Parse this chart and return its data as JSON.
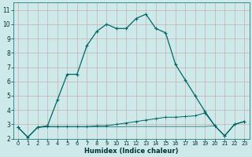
{
  "xlabel": "Humidex (Indice chaleur)",
  "bg_color": "#cde9e9",
  "grid_color": "#c8a0a0",
  "line_color": "#006666",
  "xlim": [
    -0.5,
    23.5
  ],
  "ylim": [
    2,
    11.5
  ],
  "yticks": [
    2,
    3,
    4,
    5,
    6,
    7,
    8,
    9,
    10,
    11
  ],
  "xticks": [
    0,
    1,
    2,
    3,
    4,
    5,
    6,
    7,
    8,
    9,
    10,
    11,
    12,
    13,
    14,
    15,
    16,
    17,
    18,
    19,
    20,
    21,
    22,
    23
  ],
  "line1_x": [
    0,
    1,
    2,
    3,
    4,
    5,
    6,
    7,
    8,
    9,
    10,
    11,
    12,
    13,
    14,
    15,
    16,
    17,
    18,
    19,
    20,
    21,
    22,
    23
  ],
  "line1_y": [
    2.8,
    2.1,
    2.8,
    2.9,
    4.7,
    6.5,
    6.5,
    8.5,
    9.5,
    10.0,
    9.7,
    9.7,
    10.4,
    10.7,
    9.7,
    9.4,
    7.2,
    6.1,
    5.0,
    3.9,
    2.9,
    2.2,
    3.0,
    3.2
  ],
  "line2_x": [
    0,
    1,
    2,
    3,
    4,
    5,
    6,
    7,
    8,
    9,
    10,
    11,
    12,
    13,
    14,
    15,
    16,
    17,
    18,
    19,
    20,
    21,
    22,
    23
  ],
  "line2_y": [
    2.8,
    2.1,
    2.8,
    2.85,
    2.85,
    2.85,
    2.85,
    2.85,
    2.9,
    2.9,
    3.0,
    3.1,
    3.2,
    3.3,
    3.4,
    3.5,
    3.5,
    3.55,
    3.6,
    3.8,
    2.9,
    2.2,
    3.0,
    3.2
  ],
  "line3_x": [
    0,
    1,
    2,
    3,
    4,
    5,
    6,
    7,
    8,
    9,
    10,
    11,
    12,
    13,
    14,
    15,
    16,
    17,
    18,
    19,
    20,
    21,
    22,
    23
  ],
  "line3_y": [
    2.8,
    2.1,
    2.8,
    2.82,
    2.82,
    2.82,
    2.82,
    2.82,
    2.82,
    2.82,
    2.82,
    2.85,
    2.85,
    2.85,
    2.85,
    2.85,
    2.85,
    2.85,
    2.85,
    2.85,
    2.9,
    2.2,
    3.0,
    3.2
  ],
  "figsize": [
    3.2,
    2.0
  ],
  "dpi": 100
}
